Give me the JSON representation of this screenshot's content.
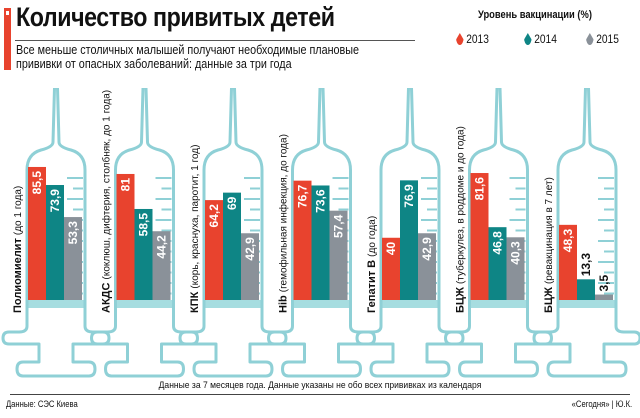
{
  "header": {
    "title": "Количество привитых детей",
    "subtitle": "Все меньше столичных малышей получают необходимые плановые прививки от опасных заболеваний: данные за три года"
  },
  "colors": {
    "2013": "#e8432e",
    "2014": "#0e8585",
    "2015": "#8a9199",
    "syringe": "#8fd0d6"
  },
  "chart_data": {
    "type": "bar",
    "title": "Количество привитых детей",
    "legend_title": "Уровень вакцинации (%)",
    "legend_position": "top-right",
    "ylim": [
      0,
      100
    ],
    "categories": [
      {
        "name": "Полиомиелит",
        "detail": "(до 1 года)"
      },
      {
        "name": "АКДС",
        "detail": "(коклюш, дифтерия, столбняк, до 1 года)"
      },
      {
        "name": "КПК",
        "detail": "(корь, краснуха, паротит, 1 год)"
      },
      {
        "name": "Hib",
        "detail": "(гемофильная инфекция, до года)"
      },
      {
        "name": "Гепатит В",
        "detail": "(до года)"
      },
      {
        "name": "БЦЖ",
        "detail": "(туберкулез, в роддоме и до года)"
      },
      {
        "name": "БЦЖ",
        "detail": "(ревакцинация в 7 лет)"
      }
    ],
    "series": [
      {
        "name": "2013",
        "values": [
          85.5,
          81,
          64.2,
          76.7,
          40,
          81.6,
          48.3
        ],
        "labels": [
          "85,5",
          "81",
          "64,2",
          "76,7",
          "40",
          "81,6",
          "48,3"
        ]
      },
      {
        "name": "2014",
        "values": [
          73.9,
          58.5,
          69,
          73.6,
          76.9,
          46.8,
          13.3
        ],
        "labels": [
          "73,9",
          "58,5",
          "69",
          "73,6",
          "76,9",
          "46,8",
          "13,3"
        ]
      },
      {
        "name": "2015",
        "values": [
          53.3,
          44.2,
          42.9,
          57.4,
          42.9,
          40.3,
          3.5
        ],
        "labels": [
          "53,3",
          "44,2",
          "42,9",
          "57,4",
          "42,9",
          "40,3",
          "3,5"
        ]
      }
    ]
  },
  "footer": {
    "note": "Данные за 7 месяцев года.  Данные указаны не обо всех прививках из календаря",
    "source": "Данные:  СЭС Киева",
    "credit": "«Сегодня» | Ю.К."
  }
}
